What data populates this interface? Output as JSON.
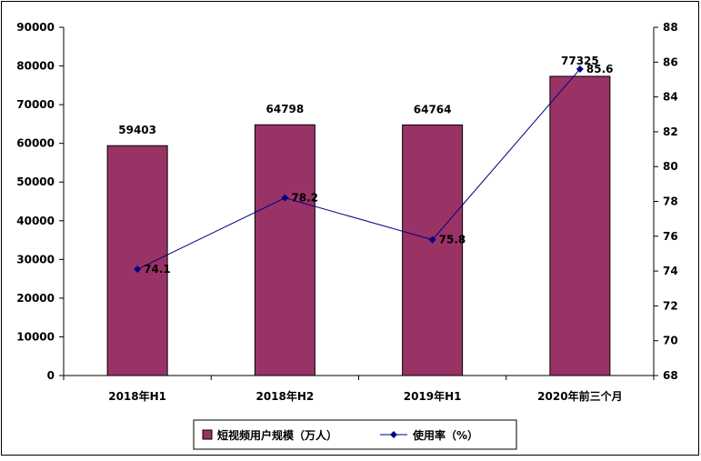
{
  "chart_data": {
    "type": "bar",
    "categories": [
      "2018年H1",
      "2018年H2",
      "2019年H1",
      "2020年前三个月"
    ],
    "series": [
      {
        "name": "短视频用户规模（万人）",
        "type": "bar",
        "axis": "left",
        "values": [
          59403,
          64798,
          64764,
          77325
        ]
      },
      {
        "name": "使用率（%）",
        "type": "line",
        "axis": "right",
        "values": [
          74.1,
          78.2,
          75.8,
          85.6
        ]
      }
    ],
    "y_left": {
      "ylim": [
        0,
        90000
      ],
      "ticks": [
        "0",
        "10000",
        "20000",
        "30000",
        "40000",
        "50000",
        "60000",
        "70000",
        "80000",
        "90000"
      ]
    },
    "y_right": {
      "ylim": [
        68,
        88
      ],
      "ticks": [
        "68",
        "70",
        "72",
        "74",
        "76",
        "78",
        "80",
        "82",
        "84",
        "86",
        "88"
      ]
    },
    "legend_position": "bottom",
    "grid": false
  },
  "colors": {
    "bar": "#993366",
    "line": "#000080"
  }
}
